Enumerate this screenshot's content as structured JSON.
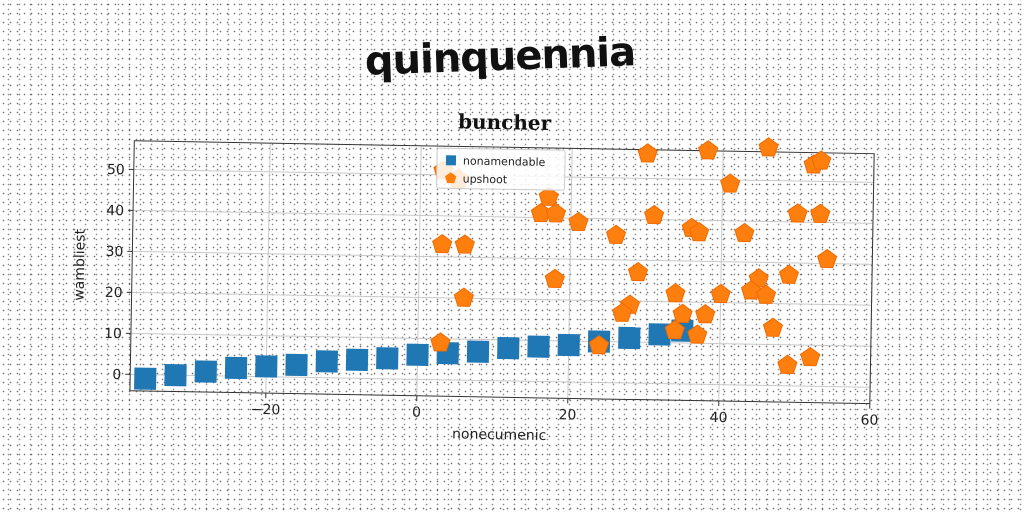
{
  "figure": {
    "title": "quinquennia"
  },
  "chart_data": {
    "type": "scatter",
    "title": "buncher",
    "xlabel": "nonecumenic",
    "ylabel": "wambliest",
    "xlim": [
      -38,
      60
    ],
    "ylim": [
      -4,
      57
    ],
    "x_ticks": [
      -20,
      0,
      20,
      40,
      60
    ],
    "y_ticks": [
      0,
      10,
      20,
      30,
      40,
      50
    ],
    "x_tick_labels": [
      "−20",
      "0",
      "20",
      "40",
      "60"
    ],
    "y_tick_labels": [
      "0",
      "10",
      "20",
      "30",
      "40",
      "50"
    ],
    "grid": true,
    "legend_position": "top-center",
    "series": [
      {
        "name": "nonamendable",
        "marker": "square",
        "color": "#1f77b4",
        "x": [
          -36,
          -32,
          -28,
          -24,
          -20,
          -16,
          -12,
          -8,
          -4,
          0,
          4,
          8,
          12,
          16,
          20,
          24,
          28,
          32,
          35
        ],
        "y": [
          -1,
          0,
          1,
          2,
          2.5,
          3,
          4,
          4.5,
          5,
          6,
          6.5,
          7,
          8,
          8.5,
          9,
          10,
          11,
          12,
          13
        ]
      },
      {
        "name": "upshoot",
        "marker": "pentagon",
        "color": "#ff7f0e",
        "x": [
          3,
          3,
          6,
          5,
          6,
          3,
          17,
          16,
          18,
          21,
          18,
          26,
          30,
          31,
          29,
          28,
          27,
          24,
          34,
          35,
          34,
          37,
          38,
          36,
          40,
          37,
          38,
          41,
          43,
          45,
          44,
          46,
          47,
          49,
          46,
          50,
          52,
          53,
          54,
          53,
          52,
          49
        ],
        "y": [
          51,
          33,
          33,
          49,
          20,
          9,
          45,
          41,
          41,
          39,
          25,
          36,
          56,
          41,
          27,
          19,
          17,
          9,
          22,
          17,
          13,
          12,
          17,
          38,
          22,
          37,
          57,
          49,
          37,
          26,
          23,
          22,
          14,
          27,
          58,
          42,
          54,
          42,
          31,
          55,
          7,
          5
        ]
      }
    ]
  }
}
